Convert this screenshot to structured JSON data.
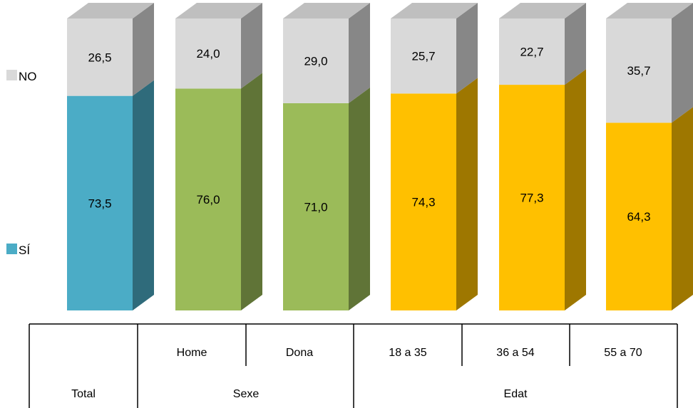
{
  "chart_data": {
    "type": "bar",
    "stacked": true,
    "three_d": true,
    "categories": [
      "Total",
      "Home",
      "Dona",
      "18 a 35",
      "36 a 54",
      "55 a 70"
    ],
    "groups": [
      {
        "label": "Total",
        "members": [
          "Total"
        ]
      },
      {
        "label": "Sexe",
        "members": [
          "Home",
          "Dona"
        ]
      },
      {
        "label": "Edat",
        "members": [
          "18 a 35",
          "36 a 54",
          "55 a 70"
        ]
      }
    ],
    "series": [
      {
        "name": "SÍ",
        "values": [
          73.5,
          76.0,
          71.0,
          74.3,
          77.3,
          64.3
        ],
        "labels": [
          "73,5",
          "76,0",
          "71,0",
          "74,3",
          "77,3",
          "64,3"
        ],
        "colors": [
          "#4BACC6",
          "#9BBB59",
          "#9BBB59",
          "#FFC000",
          "#FFC000",
          "#FFC000"
        ]
      },
      {
        "name": "NO",
        "values": [
          26.5,
          24.0,
          29.0,
          25.7,
          22.7,
          35.7
        ],
        "labels": [
          "26,5",
          "24,0",
          "29,0",
          "25,7",
          "22,7",
          "35,7"
        ],
        "colors": [
          "#D9D9D9",
          "#D9D9D9",
          "#D9D9D9",
          "#D9D9D9",
          "#D9D9D9",
          "#D9D9D9"
        ]
      }
    ],
    "ylim": [
      0,
      100
    ],
    "legend": {
      "position": "left",
      "items": [
        {
          "name": "NO",
          "color": "#D9D9D9"
        },
        {
          "name": "SÍ",
          "color": "#4BACC6"
        }
      ]
    }
  }
}
